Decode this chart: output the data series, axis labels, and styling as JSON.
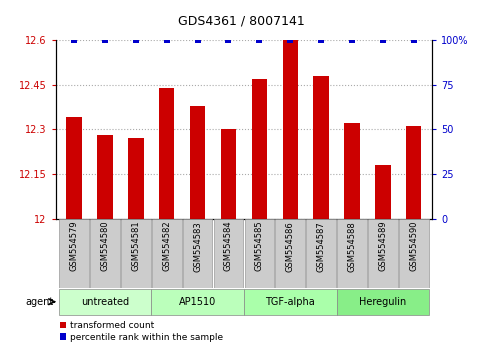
{
  "title": "GDS4361 / 8007141",
  "samples": [
    "GSM554579",
    "GSM554580",
    "GSM554581",
    "GSM554582",
    "GSM554583",
    "GSM554584",
    "GSM554585",
    "GSM554586",
    "GSM554587",
    "GSM554588",
    "GSM554589",
    "GSM554590"
  ],
  "red_values": [
    12.34,
    12.28,
    12.27,
    12.44,
    12.38,
    12.3,
    12.47,
    12.6,
    12.48,
    12.32,
    12.18,
    12.31
  ],
  "blue_values": [
    100,
    100,
    100,
    100,
    100,
    100,
    100,
    100,
    100,
    100,
    100,
    100
  ],
  "ylim_left": [
    12.0,
    12.6
  ],
  "ylim_right": [
    0,
    100
  ],
  "yticks_left": [
    12.0,
    12.15,
    12.3,
    12.45,
    12.6
  ],
  "yticks_left_labels": [
    "12",
    "12.15",
    "12.3",
    "12.45",
    "12.6"
  ],
  "yticks_right": [
    0,
    25,
    50,
    75,
    100
  ],
  "yticks_right_labels": [
    "0",
    "25",
    "50",
    "75",
    "100%"
  ],
  "bar_color": "#cc0000",
  "dot_color": "#0000cc",
  "groups": [
    {
      "label": "untreated",
      "start": 0,
      "end": 3
    },
    {
      "label": "AP1510",
      "start": 3,
      "end": 6
    },
    {
      "label": "TGF-alpha",
      "start": 6,
      "end": 9
    },
    {
      "label": "Heregulin",
      "start": 9,
      "end": 12
    }
  ],
  "grp_colors": [
    "#ccffcc",
    "#bbffbb",
    "#aaffaa",
    "#88ee88"
  ],
  "agent_label": "agent",
  "legend_red": "transformed count",
  "legend_blue": "percentile rank within the sample",
  "grid_color": "#aaaaaa",
  "tick_color_left": "#cc0000",
  "tick_color_right": "#0000cc",
  "bar_width": 0.5,
  "sample_box_color": "#cccccc",
  "sample_box_edge": "#999999"
}
